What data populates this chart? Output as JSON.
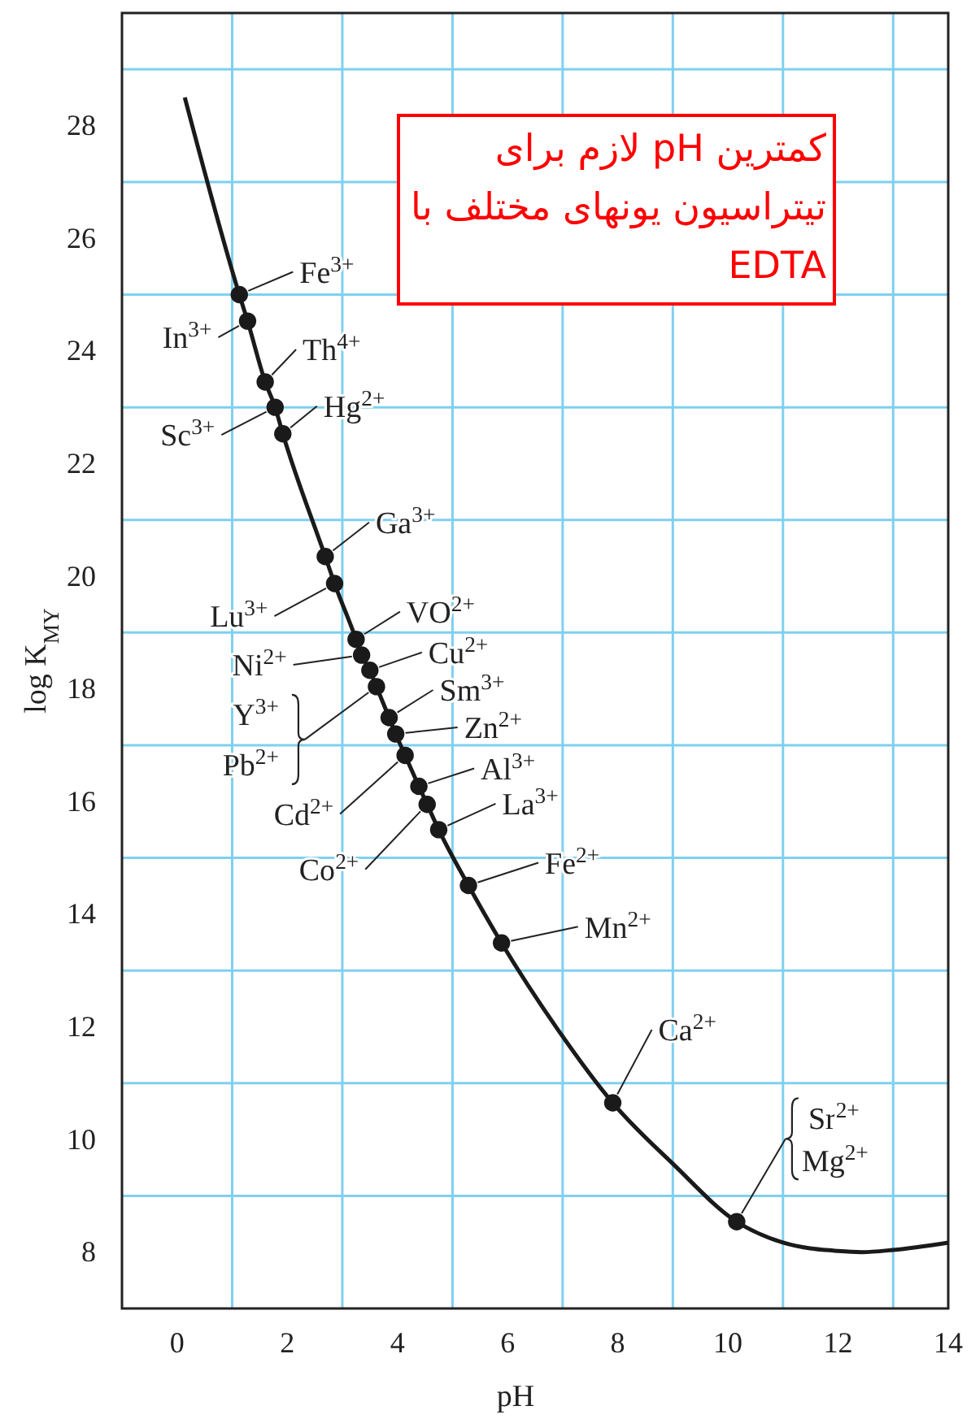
{
  "chart_data": {
    "type": "line",
    "title": "کمترین pH لازم برای تیتراسیون یونهای مختلف با EDTA",
    "xlabel": "pH",
    "ylabel": "log K$_{MY}$",
    "xlim": [
      -1,
      14
    ],
    "ylim": [
      7,
      30
    ],
    "xticks": [
      0,
      {
        "value": 1,
        "label": null
      },
      2,
      {
        "value": 3,
        "label": null
      },
      4,
      {
        "value": 5,
        "label": null
      },
      6,
      {
        "value": 7,
        "label": null
      },
      8,
      {
        "value": 9,
        "label": null
      },
      10,
      {
        "value": 11,
        "label": null
      },
      12,
      {
        "value": 13,
        "label": null
      },
      14
    ],
    "yticks": [
      8,
      {
        "value": 9,
        "label": null
      },
      10,
      {
        "value": 11,
        "label": null
      },
      12,
      {
        "value": 13,
        "label": null
      },
      14,
      {
        "value": 15,
        "label": null
      },
      16,
      {
        "value": 17,
        "label": null
      },
      18,
      {
        "value": 19,
        "label": null
      },
      20,
      {
        "value": 21,
        "label": null
      },
      22,
      {
        "value": 23,
        "label": null
      },
      24,
      {
        "value": 25,
        "label": null
      },
      26,
      {
        "value": 27,
        "label": null
      },
      28,
      {
        "value": 29,
        "label": null
      }
    ],
    "grid": true,
    "series": [
      {
        "type": "line",
        "color": "#1a1a1a",
        "marker": "none",
        "x": [
          0.14,
          1.13,
          1.28,
          1.6,
          1.78,
          1.92,
          2.69,
          2.86,
          3.25,
          3.35,
          3.5,
          3.62,
          3.85,
          3.97,
          4.14,
          4.39,
          4.54,
          4.75,
          5.29,
          5.89,
          6.9,
          7.91,
          9,
          10.16,
          11,
          12,
          12.43,
          13,
          14
        ],
        "values": [
          28.5,
          25.0,
          24.53,
          23.45,
          23.0,
          22.53,
          20.35,
          19.87,
          18.88,
          18.6,
          18.33,
          18.04,
          17.49,
          17.2,
          16.82,
          16.27,
          15.95,
          15.5,
          14.51,
          13.49,
          11.97,
          10.65,
          9.57,
          8.54,
          8.17,
          8.02,
          8.0,
          8.04,
          8.17
        ]
      },
      {
        "type": "scatter",
        "color": "#1a1a1a",
        "marker": "circle",
        "x": [
          1.13,
          1.28,
          1.6,
          1.78,
          1.92,
          2.69,
          2.86,
          3.25,
          3.35,
          3.5,
          3.62,
          3.85,
          3.97,
          4.14,
          4.39,
          4.54,
          4.75,
          5.29,
          5.89,
          7.91,
          10.16
        ],
        "values": [
          25.0,
          24.53,
          23.45,
          23.0,
          22.53,
          20.35,
          19.87,
          18.88,
          18.6,
          18.33,
          18.04,
          17.49,
          17.2,
          16.82,
          16.27,
          15.95,
          15.5,
          14.51,
          13.49,
          10.65,
          8.54
        ]
      }
    ],
    "annotations": [
      {
        "text": "Fe$^{3+}$",
        "x": 1.13,
        "y": 25.0
      },
      {
        "text": "In$^{3+}$",
        "x": 1.28,
        "y": 24.53
      },
      {
        "text": "Th$^{4+}$",
        "x": 1.6,
        "y": 23.45
      },
      {
        "text": "Sc$^{3+}$",
        "x": 1.78,
        "y": 23.0
      },
      {
        "text": "Hg$^{2+}$",
        "x": 1.92,
        "y": 22.53
      },
      {
        "text": "Ga$^{3+}$",
        "x": 2.69,
        "y": 20.35
      },
      {
        "text": "Lu$^{3+}$",
        "x": 2.86,
        "y": 19.87
      },
      {
        "text": "VO$^{2+}$",
        "x": 3.25,
        "y": 18.88
      },
      {
        "text": "Ni$^{2+}$",
        "x": 3.35,
        "y": 18.6
      },
      {
        "text": "Cu$^{2+}$",
        "x": 3.5,
        "y": 18.33
      },
      {
        "text": "Y$^{3+}$",
        "x": 3.62,
        "y": 18.04
      },
      {
        "text": "Pb$^{2+}$",
        "x": 3.62,
        "y": 18.04
      },
      {
        "text": "Sm$^{3+}$",
        "x": 3.85,
        "y": 17.49
      },
      {
        "text": "Zn$^{2+}$",
        "x": 3.97,
        "y": 17.2
      },
      {
        "text": "Cd$^{2+}$",
        "x": 4.14,
        "y": 16.82
      },
      {
        "text": "Al$^{3+}$",
        "x": 4.39,
        "y": 16.27
      },
      {
        "text": "Co$^{2+}$",
        "x": 4.54,
        "y": 15.95
      },
      {
        "text": "La$^{3+}$",
        "x": 4.75,
        "y": 15.5
      },
      {
        "text": "Fe$^{2+}$",
        "x": 5.29,
        "y": 14.51
      },
      {
        "text": "Mn$^{2+}$",
        "x": 5.89,
        "y": 13.49
      },
      {
        "text": "Ca$^{2+}$",
        "x": 7.91,
        "y": 10.65
      },
      {
        "text": "Sr$^{2+}$",
        "x": 10.16,
        "y": 8.54
      },
      {
        "text": "Mg$^{2+}$",
        "x": 10.16,
        "y": 8.54
      }
    ]
  }
}
